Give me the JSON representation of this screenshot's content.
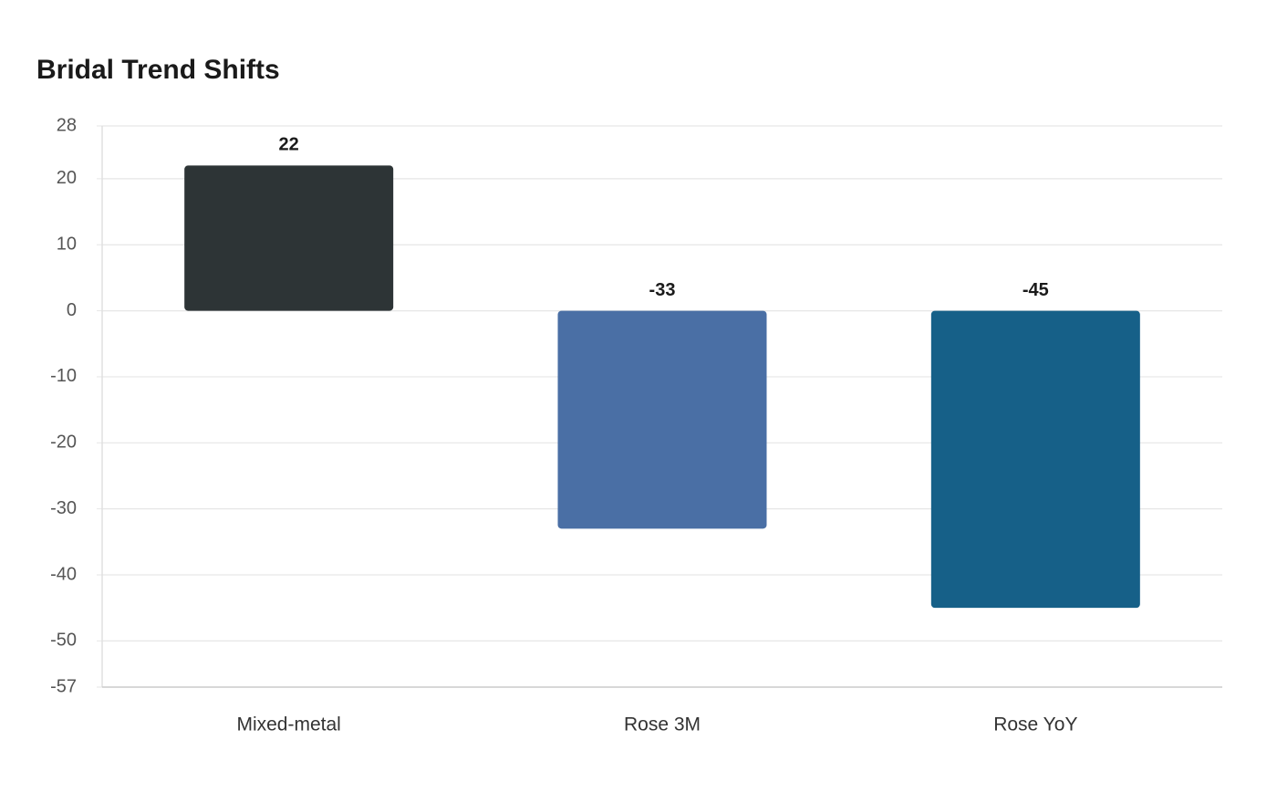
{
  "chart_data": {
    "type": "bar",
    "title": "Bridal Trend Shifts",
    "categories": [
      "Mixed-metal",
      "Rose 3M",
      "Rose YoY"
    ],
    "values": [
      22,
      -33,
      -45
    ],
    "colors": [
      "#2d3436",
      "#4a6fa5",
      "#166088"
    ],
    "ylim": [
      -57,
      28
    ],
    "yticks": [
      28,
      20,
      10,
      0,
      -10,
      -20,
      -30,
      -40,
      -50,
      -57
    ],
    "grid": true,
    "xlabel": "",
    "ylabel": ""
  }
}
